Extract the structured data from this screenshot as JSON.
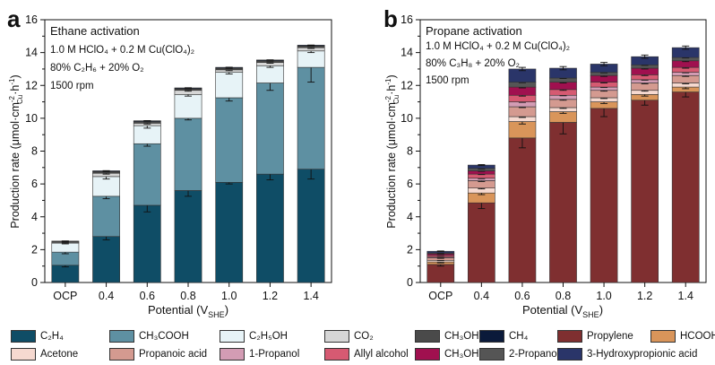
{
  "panel_a": {
    "letter": "a",
    "title": "Ethane activation",
    "cond1": "1.0 M HClO₄ + 0.2 M Cu(ClO₄)₂",
    "cond2": "80% C₂H₆ + 20% O₂",
    "cond3": "1500 rpm"
  },
  "panel_b": {
    "letter": "b",
    "title": "Propane activation",
    "cond1": "1.0 M HClO₄ + 0.2 M Cu(ClO₄)₂",
    "cond2": "80% C₃H₈ + 20% O₂",
    "cond3": "1500 rpm"
  },
  "axis": {
    "ylabel_main": "Production rate (μmol·cm",
    "ylabel_sup1": "-2",
    "ylabel_sub": "Cu",
    "ylabel_mid": "·h",
    "ylabel_sup2": "-1",
    "ylabel_end": ")",
    "xlabel_main": "Potential (V",
    "xlabel_sub": "SHE",
    "xlabel_end": ")"
  },
  "legend": [
    {
      "label": "C₂H₄",
      "color": "#0f4d66"
    },
    {
      "label": "CH₃COOH",
      "color": "#5e90a2"
    },
    {
      "label": "C₂H₅OH",
      "color": "#e7f3f7"
    },
    {
      "label": "CO₂",
      "color": "#d6d6d6"
    },
    {
      "label": "CH₃OH",
      "color": "#4a4a4a"
    },
    {
      "label": "CH₄",
      "color": "#0b1a3a"
    },
    {
      "label": "Propylene",
      "color": "#7f2f30"
    },
    {
      "label": "HCOOH",
      "color": "#d9955a"
    },
    {
      "label": "Acetone",
      "color": "#f6d9d0"
    },
    {
      "label": "Propanoic acid",
      "color": "#d49a90"
    },
    {
      "label": "1-Propanol",
      "color": "#d39cb4"
    },
    {
      "label": "Allyl alcohol",
      "color": "#d65a72"
    },
    {
      "label": "CH₃OH",
      "color": "#a0104f"
    },
    {
      "label": "2-Propanol",
      "color": "#555555"
    },
    {
      "label": "3-Hydroxypropionic acid",
      "color": "#2a3569"
    }
  ],
  "chart_data": [
    {
      "type": "bar",
      "stacked": true,
      "title": "Ethane activation",
      "xlabel": "Potential (V_SHE)",
      "ylabel": "Production rate (μmol·cm_Cu^-2·h^-1)",
      "categories": [
        "OCP",
        "0.4",
        "0.6",
        "0.8",
        "1.0",
        "1.2",
        "1.4"
      ],
      "ylim": [
        0,
        16
      ],
      "yticks": [
        0,
        2,
        4,
        6,
        8,
        10,
        12,
        14,
        16
      ],
      "series": [
        {
          "name": "C₂H₄",
          "color": "#0f4d66",
          "values": [
            1.05,
            2.8,
            4.7,
            5.6,
            6.1,
            6.6,
            6.9
          ],
          "errors": [
            0.1,
            0.2,
            0.4,
            0.35,
            0.1,
            0.35,
            0.6
          ]
        },
        {
          "name": "CH₃COOH",
          "color": "#5e90a2",
          "values": [
            0.8,
            2.45,
            3.75,
            4.4,
            5.15,
            5.55,
            6.2
          ],
          "errors": [
            0.1,
            0.15,
            0.15,
            0.1,
            0.2,
            0.45,
            0.9
          ]
        },
        {
          "name": "C₂H₅OH",
          "color": "#e7f3f7",
          "values": [
            0.55,
            1.2,
            1.1,
            1.45,
            1.55,
            1.05,
            1.0
          ],
          "errors": [
            0.05,
            0.15,
            0.15,
            0.1,
            0.1,
            0.1,
            0.1
          ]
        },
        {
          "name": "CO₂",
          "color": "#d6d6d6",
          "values": [
            0.05,
            0.2,
            0.15,
            0.25,
            0.15,
            0.2,
            0.2
          ],
          "errors": [
            0.02,
            0.05,
            0.05,
            0.05,
            0.05,
            0.05,
            0.05
          ]
        },
        {
          "name": "CH₃OH",
          "color": "#4a4a4a",
          "values": [
            0.05,
            0.1,
            0.1,
            0.1,
            0.1,
            0.1,
            0.1
          ],
          "errors": [
            0.02,
            0.02,
            0.02,
            0.02,
            0.02,
            0.02,
            0.02
          ]
        },
        {
          "name": "CH₄",
          "color": "#0b1a3a",
          "values": [
            0.02,
            0.05,
            0.05,
            0.05,
            0.05,
            0.05,
            0.05
          ],
          "errors": [
            0.01,
            0.01,
            0.01,
            0.01,
            0.01,
            0.01,
            0.01
          ]
        }
      ]
    },
    {
      "type": "bar",
      "stacked": true,
      "title": "Propane activation",
      "xlabel": "Potential (V_SHE)",
      "ylabel": "Production rate (μmol·cm_Cu^-2·h^-1)",
      "categories": [
        "OCP",
        "0.4",
        "0.6",
        "0.8",
        "1.0",
        "1.2",
        "1.4"
      ],
      "ylim": [
        0,
        16
      ],
      "yticks": [
        0,
        2,
        4,
        6,
        8,
        10,
        12,
        14,
        16
      ],
      "series": [
        {
          "name": "Propylene",
          "color": "#7f2f30",
          "values": [
            1.1,
            4.85,
            8.8,
            9.75,
            10.6,
            11.1,
            11.6
          ],
          "errors": [
            0.1,
            0.35,
            0.6,
            0.7,
            0.5,
            0.3,
            0.3
          ]
        },
        {
          "name": "HCOOH",
          "color": "#d9955a",
          "values": [
            0.15,
            0.6,
            1.0,
            0.65,
            0.4,
            0.35,
            0.3
          ],
          "errors": [
            0.05,
            0.1,
            0.15,
            0.1,
            0.1,
            0.1,
            0.1
          ]
        },
        {
          "name": "Acetone",
          "color": "#f6d9d0",
          "values": [
            0.1,
            0.3,
            0.3,
            0.25,
            0.25,
            0.25,
            0.25
          ],
          "errors": [
            0.02,
            0.05,
            0.05,
            0.05,
            0.05,
            0.05,
            0.05
          ]
        },
        {
          "name": "Propanoic acid",
          "color": "#d49a90",
          "values": [
            0.15,
            0.45,
            0.6,
            0.5,
            0.45,
            0.45,
            0.45
          ],
          "errors": [
            0.03,
            0.05,
            0.05,
            0.05,
            0.05,
            0.05,
            0.05
          ]
        },
        {
          "name": "1-Propanol",
          "color": "#d39cb4",
          "values": [
            0.05,
            0.15,
            0.3,
            0.25,
            0.2,
            0.2,
            0.2
          ],
          "errors": [
            0.02,
            0.03,
            0.03,
            0.03,
            0.03,
            0.03,
            0.03
          ]
        },
        {
          "name": "Allyl alcohol",
          "color": "#d65a72",
          "values": [
            0.1,
            0.25,
            0.4,
            0.35,
            0.3,
            0.3,
            0.3
          ],
          "errors": [
            0.02,
            0.03,
            0.05,
            0.05,
            0.05,
            0.05,
            0.05
          ]
        },
        {
          "name": "CH₃OH",
          "color": "#a0104f",
          "values": [
            0.1,
            0.2,
            0.5,
            0.45,
            0.4,
            0.4,
            0.4
          ],
          "errors": [
            0.02,
            0.03,
            0.05,
            0.05,
            0.05,
            0.05,
            0.05
          ]
        },
        {
          "name": "2-Propanol",
          "color": "#555555",
          "values": [
            0.05,
            0.15,
            0.3,
            0.25,
            0.2,
            0.2,
            0.2
          ],
          "errors": [
            0.02,
            0.03,
            0.03,
            0.03,
            0.03,
            0.03,
            0.03
          ]
        },
        {
          "name": "3-Hydroxypropionic acid",
          "color": "#2a3569",
          "values": [
            0.1,
            0.2,
            0.8,
            0.6,
            0.5,
            0.5,
            0.6
          ],
          "errors": [
            0.02,
            0.03,
            0.1,
            0.1,
            0.1,
            0.1,
            0.1
          ]
        }
      ]
    }
  ]
}
